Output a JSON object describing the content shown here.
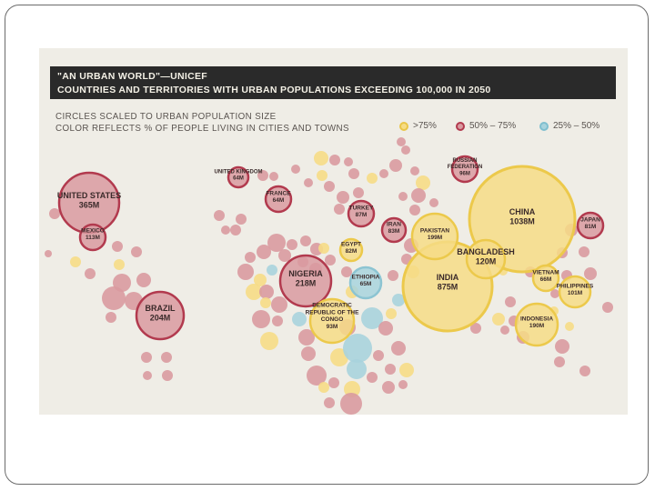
{
  "chart_data": {
    "type": "bubble-map",
    "title": "\"AN URBAN WORLD\"—UNICEF",
    "subtitle": "COUNTRIES AND TERRITORIES WITH URBAN POPULATIONS EXCEEDING 100,000 IN 2050",
    "description_lines": [
      "CIRCLES SCALED TO URBAN POPULATION SIZE",
      "COLOR REFLECTS % OF PEOPLE LIVING IN CITIES AND TOWNS"
    ],
    "legend": [
      {
        "label": ">75%",
        "category": "high",
        "color": "#e9c547"
      },
      {
        "label": "50% – 75%",
        "category": "mid",
        "color": "#b23a4e"
      },
      {
        "label": "25% – 50%",
        "category": "low",
        "color": "#7fbfcf"
      }
    ],
    "colors": {
      "high": {
        "fill": "#f6dc86",
        "stroke": "#ecc94b"
      },
      "mid": {
        "fill": "#d99aa0",
        "stroke": "#b23a4e"
      },
      "low": {
        "fill": "#a8d3dd",
        "stroke": "#8cc4d2"
      }
    },
    "labeled_countries": [
      {
        "name": "UNITED STATES",
        "value": "365M",
        "category": "mid"
      },
      {
        "name": "MEXICO",
        "value": "113M",
        "category": "mid"
      },
      {
        "name": "BRAZIL",
        "value": "204M",
        "category": "mid"
      },
      {
        "name": "UNITED KINGDOM",
        "value": "64M",
        "category": "mid"
      },
      {
        "name": "FRANCE",
        "value": "64M",
        "category": "mid"
      },
      {
        "name": "RUSSIAN FEDERATION",
        "value": "96M",
        "category": "mid"
      },
      {
        "name": "TURKEY",
        "value": "87M",
        "category": "mid"
      },
      {
        "name": "IRAN",
        "value": "83M",
        "category": "mid"
      },
      {
        "name": "EGYPT",
        "value": "82M",
        "category": "high"
      },
      {
        "name": "NIGERIA",
        "value": "218M",
        "category": "mid"
      },
      {
        "name": "ETHIOPIA",
        "value": "65M",
        "category": "low"
      },
      {
        "name": "DEMOCRATIC REPUBLIC OF THE CONGO",
        "value": "93M",
        "category": "high"
      },
      {
        "name": "PAKISTAN",
        "value": "199M",
        "category": "high"
      },
      {
        "name": "INDIA",
        "value": "875M",
        "category": "high"
      },
      {
        "name": "CHINA",
        "value": "1038M",
        "category": "high"
      },
      {
        "name": "BANGLADESH",
        "value": "120M",
        "category": "high"
      },
      {
        "name": "JAPAN",
        "value": "81M",
        "category": "mid"
      },
      {
        "name": "VIETNAM",
        "value": "66M",
        "category": "high"
      },
      {
        "name": "PHILIPPINES",
        "value": "101M",
        "category": "high"
      },
      {
        "name": "INDONESIA",
        "value": "190M",
        "category": "high"
      }
    ]
  }
}
